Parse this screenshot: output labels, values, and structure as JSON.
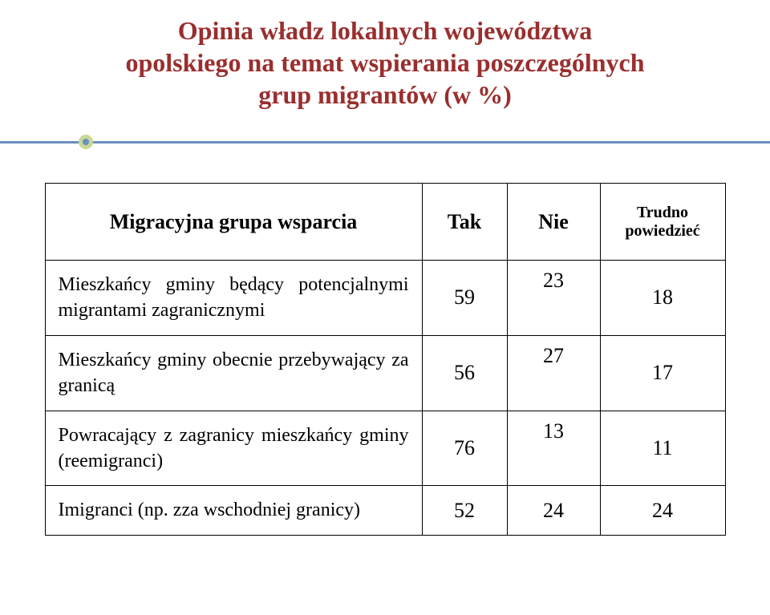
{
  "title_line1": "Opinia władz lokalnych województwa",
  "title_line2": "opolskiego na temat wspierania poszczególnych",
  "title_line3": "grup migrantów (w %)",
  "title_color": "#9a2e2e",
  "divider_color": "#6b8fbf",
  "bullet_outer_color": "#c9d89a",
  "bullet_inner_color": "#6b8fbf",
  "table": {
    "columns": [
      "Migracyjna grupa wsparcia",
      "Tak",
      "Nie",
      "Trudno powiedzieć"
    ],
    "rows": [
      {
        "label": "Mieszkańcy gminy będący potencjalnymi migrantami zagranicznymi",
        "tak": "59",
        "nie": "23",
        "tp": "18"
      },
      {
        "label": "Mieszkańcy gminy obecnie przebywający za granicą",
        "tak": "56",
        "nie": "27",
        "tp": "17"
      },
      {
        "label": "Powracający z zagranicy mieszkańcy gminy (reemigranci)",
        "tak": "76",
        "nie": "13",
        "tp": "11"
      },
      {
        "label": "Imigranci (np. zza wschodniej granicy)",
        "tak": "52",
        "nie": "24",
        "tp": "24"
      }
    ]
  }
}
